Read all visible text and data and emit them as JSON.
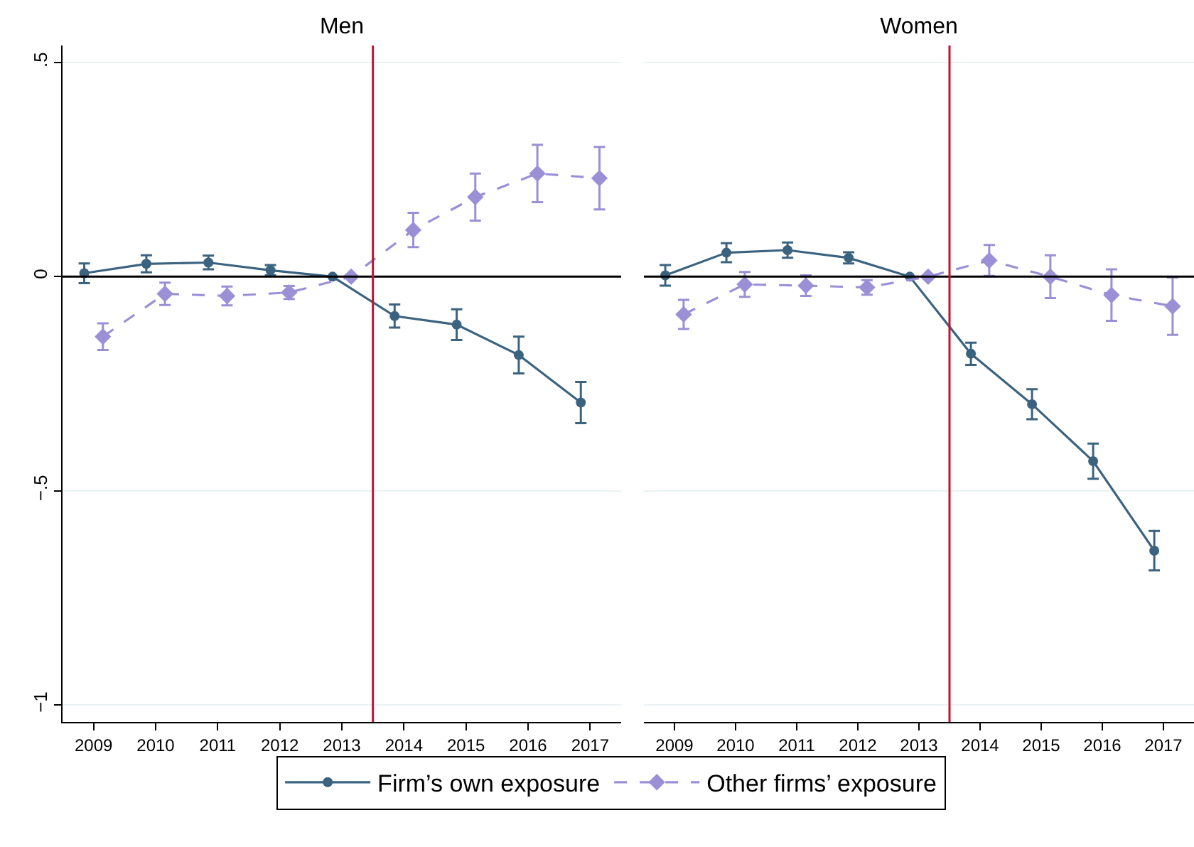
{
  "chart_data": [
    {
      "type": "line",
      "title": "Men",
      "xlim": [
        2008.5,
        2017.5
      ],
      "xticks": [
        2009,
        2010,
        2011,
        2012,
        2013,
        2014,
        2015,
        2016,
        2017
      ],
      "ylim": [
        -1.04,
        0.54
      ],
      "yticks": [
        {
          "value": 0.5,
          "label": ".5"
        },
        0,
        {
          "value": -0.5,
          "label": "−.5"
        },
        {
          "value": -1,
          "label": "−1"
        }
      ],
      "grid": "y",
      "legend": "bottom",
      "ref_lines": [
        {
          "axis": "y",
          "value": 0,
          "color": "#000000"
        },
        {
          "axis": "x",
          "value": 2013.5,
          "color": "#c8102e"
        }
      ],
      "series": [
        {
          "name": "Firm’s own exposure",
          "color": "#3b6380",
          "marker": "circle",
          "line_style": "solid",
          "x": [
            2008.85,
            2009.85,
            2010.85,
            2011.85,
            2012.85,
            2013.85,
            2014.85,
            2015.85,
            2016.85
          ],
          "values": [
            0.008,
            0.03,
            0.033,
            0.015,
            0,
            -0.092,
            -0.112,
            -0.183,
            -0.294
          ],
          "errors": [
            0.023,
            0.02,
            0.016,
            0.012,
            0,
            0.027,
            0.036,
            0.043,
            0.048
          ]
        },
        {
          "name": "Other firms’ exposure",
          "color": "#9b8fd6",
          "marker": "diamond",
          "line_style": "dashed",
          "x": [
            2009.15,
            2010.15,
            2011.15,
            2012.15,
            2013.15,
            2014.15,
            2015.15,
            2016.15,
            2017.15
          ],
          "values": [
            -0.14,
            -0.04,
            -0.045,
            -0.037,
            0,
            0.109,
            0.186,
            0.241,
            0.23
          ],
          "errors": [
            0.031,
            0.026,
            0.022,
            0.015,
            0,
            0.04,
            0.055,
            0.067,
            0.073
          ]
        }
      ]
    },
    {
      "type": "line",
      "title": "Women",
      "xlim": [
        2008.5,
        2017.5
      ],
      "xticks": [
        2009,
        2010,
        2011,
        2012,
        2013,
        2014,
        2015,
        2016,
        2017
      ],
      "ylim": [
        -1.04,
        0.54
      ],
      "yticks": [
        {
          "value": 0.5,
          "label": null
        },
        {
          "value": 0,
          "label": null
        },
        {
          "value": -0.5,
          "label": null
        },
        {
          "value": -1,
          "label": null
        }
      ],
      "grid": "y",
      "tick_labels": "x",
      "ref_lines": [
        {
          "axis": "y",
          "value": 0,
          "color": "#000000"
        },
        {
          "axis": "x",
          "value": 2013.5,
          "color": "#c8102e"
        }
      ],
      "series": [
        {
          "color": "#3b6380",
          "marker": "circle",
          "line_style": "solid",
          "x": [
            2008.85,
            2009.85,
            2010.85,
            2011.85,
            2012.85,
            2013.85,
            2014.85,
            2015.85,
            2016.85
          ],
          "values": [
            0.003,
            0.056,
            0.062,
            0.044,
            0,
            -0.18,
            -0.298,
            -0.431,
            -0.64
          ],
          "errors": [
            0.024,
            0.022,
            0.018,
            0.013,
            0,
            0.026,
            0.035,
            0.041,
            0.046
          ]
        },
        {
          "color": "#9b8fd6",
          "marker": "diamond",
          "line_style": "dashed",
          "x": [
            2009.15,
            2010.15,
            2011.15,
            2012.15,
            2013.15,
            2014.15,
            2015.15,
            2016.15,
            2017.15
          ],
          "values": [
            -0.088,
            -0.018,
            -0.021,
            -0.025,
            0,
            0.038,
            0,
            -0.043,
            -0.069
          ],
          "errors": [
            0.034,
            0.029,
            0.024,
            0.017,
            0,
            0.036,
            0.05,
            0.06,
            0.067
          ]
        }
      ]
    }
  ]
}
